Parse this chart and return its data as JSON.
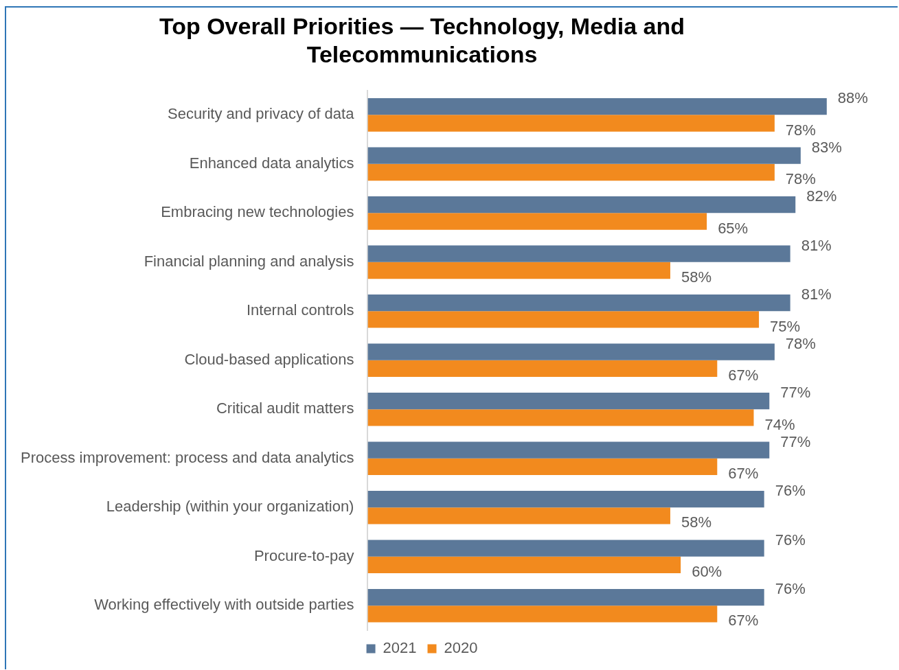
{
  "chart_data": {
    "type": "bar",
    "orientation": "horizontal",
    "title": "Top Overall Priorities — Technology, Media and Telecommunications",
    "categories": [
      "Security and privacy of data",
      "Enhanced data analytics",
      "Embracing new technologies",
      "Financial planning and analysis",
      "Internal controls",
      "Cloud-based applications",
      "Critical audit matters",
      "Process improvement: process and data analytics",
      "Leadership (within your organization)",
      "Procure-to-pay",
      "Working effectively with outside parties"
    ],
    "series": [
      {
        "name": "2021",
        "color": "#5b7899",
        "values": [
          88,
          83,
          82,
          81,
          81,
          78,
          77,
          77,
          76,
          76,
          76
        ],
        "value_labels": [
          "88%",
          "83%",
          "82%",
          "81%",
          "81%",
          "78%",
          "77%",
          "77%",
          "76%",
          "76%",
          "76%"
        ]
      },
      {
        "name": "2020",
        "color": "#f28a1e",
        "values": [
          78,
          78,
          65,
          58,
          75,
          67,
          74,
          67,
          58,
          60,
          67
        ],
        "value_labels": [
          "78%",
          "78%",
          "65%",
          "58%",
          "75%",
          "67%",
          "74%",
          "67%",
          "58%",
          "60%",
          "67%"
        ]
      }
    ],
    "tick_labels": "y",
    "grid": false,
    "legend": "bottom"
  }
}
